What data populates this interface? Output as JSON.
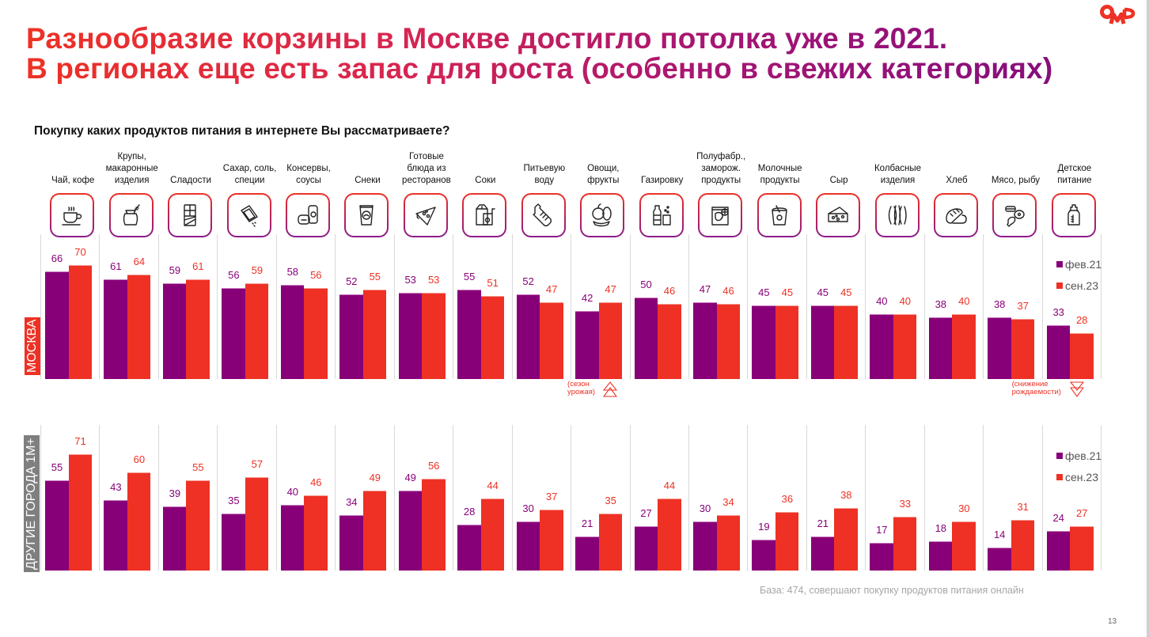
{
  "title": {
    "line1": "Разнообразие корзины в Москве достигло потолка уже в 2021.",
    "line2": "В регионах еще есть запас для роста (особенно в свежих категориях)"
  },
  "logo": {
    "text": "OMD",
    "color": "#ee3124"
  },
  "question": "Покупку каких продуктов питания в интернете Вы рассматриваете?",
  "colors": {
    "series0": "#880078",
    "series1": "#ee3124",
    "moscow_label_bg": "#ee3124",
    "other_label_bg": "#7f7f7f"
  },
  "icons": [
    "coffee-cup-icon",
    "grain-sack-icon",
    "chocolate-bar-icon",
    "sugar-packet-icon",
    "canned-food-icon",
    "chips-bag-icon",
    "pizza-slice-icon",
    "juice-box-icon",
    "water-bottle-icon",
    "fruits-vegetables-icon",
    "soda-bottle-icon",
    "frozen-food-bag-icon",
    "yogurt-cup-icon",
    "cheese-icon",
    "sausages-icon",
    "bread-icon",
    "meat-fish-icon",
    "baby-bottle-icon"
  ],
  "chart_data": [
    {
      "type": "bar",
      "title": "МОСКВА",
      "region": "МОСКВА",
      "categories": [
        [
          "Чай, кофе"
        ],
        [
          "Крупы,",
          "макаронные",
          "изделия"
        ],
        [
          "Сладости"
        ],
        [
          "Сахар, соль,",
          "специи"
        ],
        [
          "Консервы,",
          "соусы"
        ],
        [
          "Снеки"
        ],
        [
          "Готовые",
          "блюда из",
          "ресторанов"
        ],
        [
          "Соки"
        ],
        [
          "Питьевую",
          "воду"
        ],
        [
          "Овощи,",
          "фрукты"
        ],
        [
          "Газировку"
        ],
        [
          "Полуфабр.,",
          "заморож.",
          "продукты"
        ],
        [
          "Молочные",
          "продукты"
        ],
        [
          "Сыр"
        ],
        [
          "Колбасные",
          "изделия"
        ],
        [
          "Хлеб"
        ],
        [
          "Мясо, рыбу"
        ],
        [
          "Детское",
          "питание"
        ]
      ],
      "series": [
        {
          "name": "фев.21",
          "values": [
            66,
            61,
            59,
            56,
            58,
            52,
            53,
            55,
            52,
            42,
            50,
            47,
            45,
            45,
            40,
            38,
            38,
            33
          ]
        },
        {
          "name": "сен.23",
          "values": [
            70,
            64,
            61,
            59,
            56,
            55,
            53,
            51,
            47,
            47,
            46,
            46,
            45,
            45,
            40,
            40,
            37,
            28
          ]
        }
      ],
      "ylim": [
        0,
        75
      ],
      "legend": "top-right",
      "annotations": [
        {
          "category_index": 9,
          "lines": [
            "(сезон",
            "урожая)"
          ],
          "arrow": "up"
        },
        {
          "category_index": 17,
          "lines": [
            "(снижение",
            "рождаемости)"
          ],
          "arrow": "down"
        }
      ]
    },
    {
      "type": "bar",
      "title": "ДРУГИЕ ГОРОДА 1М+",
      "region": "ДРУГИЕ ГОРОДА 1М+",
      "categories_ref": "same as Moscow chart",
      "series": [
        {
          "name": "фев.21",
          "values": [
            55,
            43,
            39,
            35,
            40,
            34,
            49,
            28,
            30,
            21,
            27,
            30,
            19,
            21,
            17,
            18,
            14,
            24
          ]
        },
        {
          "name": "сен.23",
          "values": [
            71,
            60,
            55,
            57,
            46,
            49,
            56,
            44,
            37,
            35,
            44,
            34,
            36,
            38,
            33,
            30,
            31,
            27
          ]
        }
      ],
      "ylim": [
        0,
        75
      ],
      "legend": "top-right"
    }
  ],
  "footer": {
    "base_note": "База: 474, совершают покупку продуктов питания онлайн",
    "page_number": "13"
  }
}
